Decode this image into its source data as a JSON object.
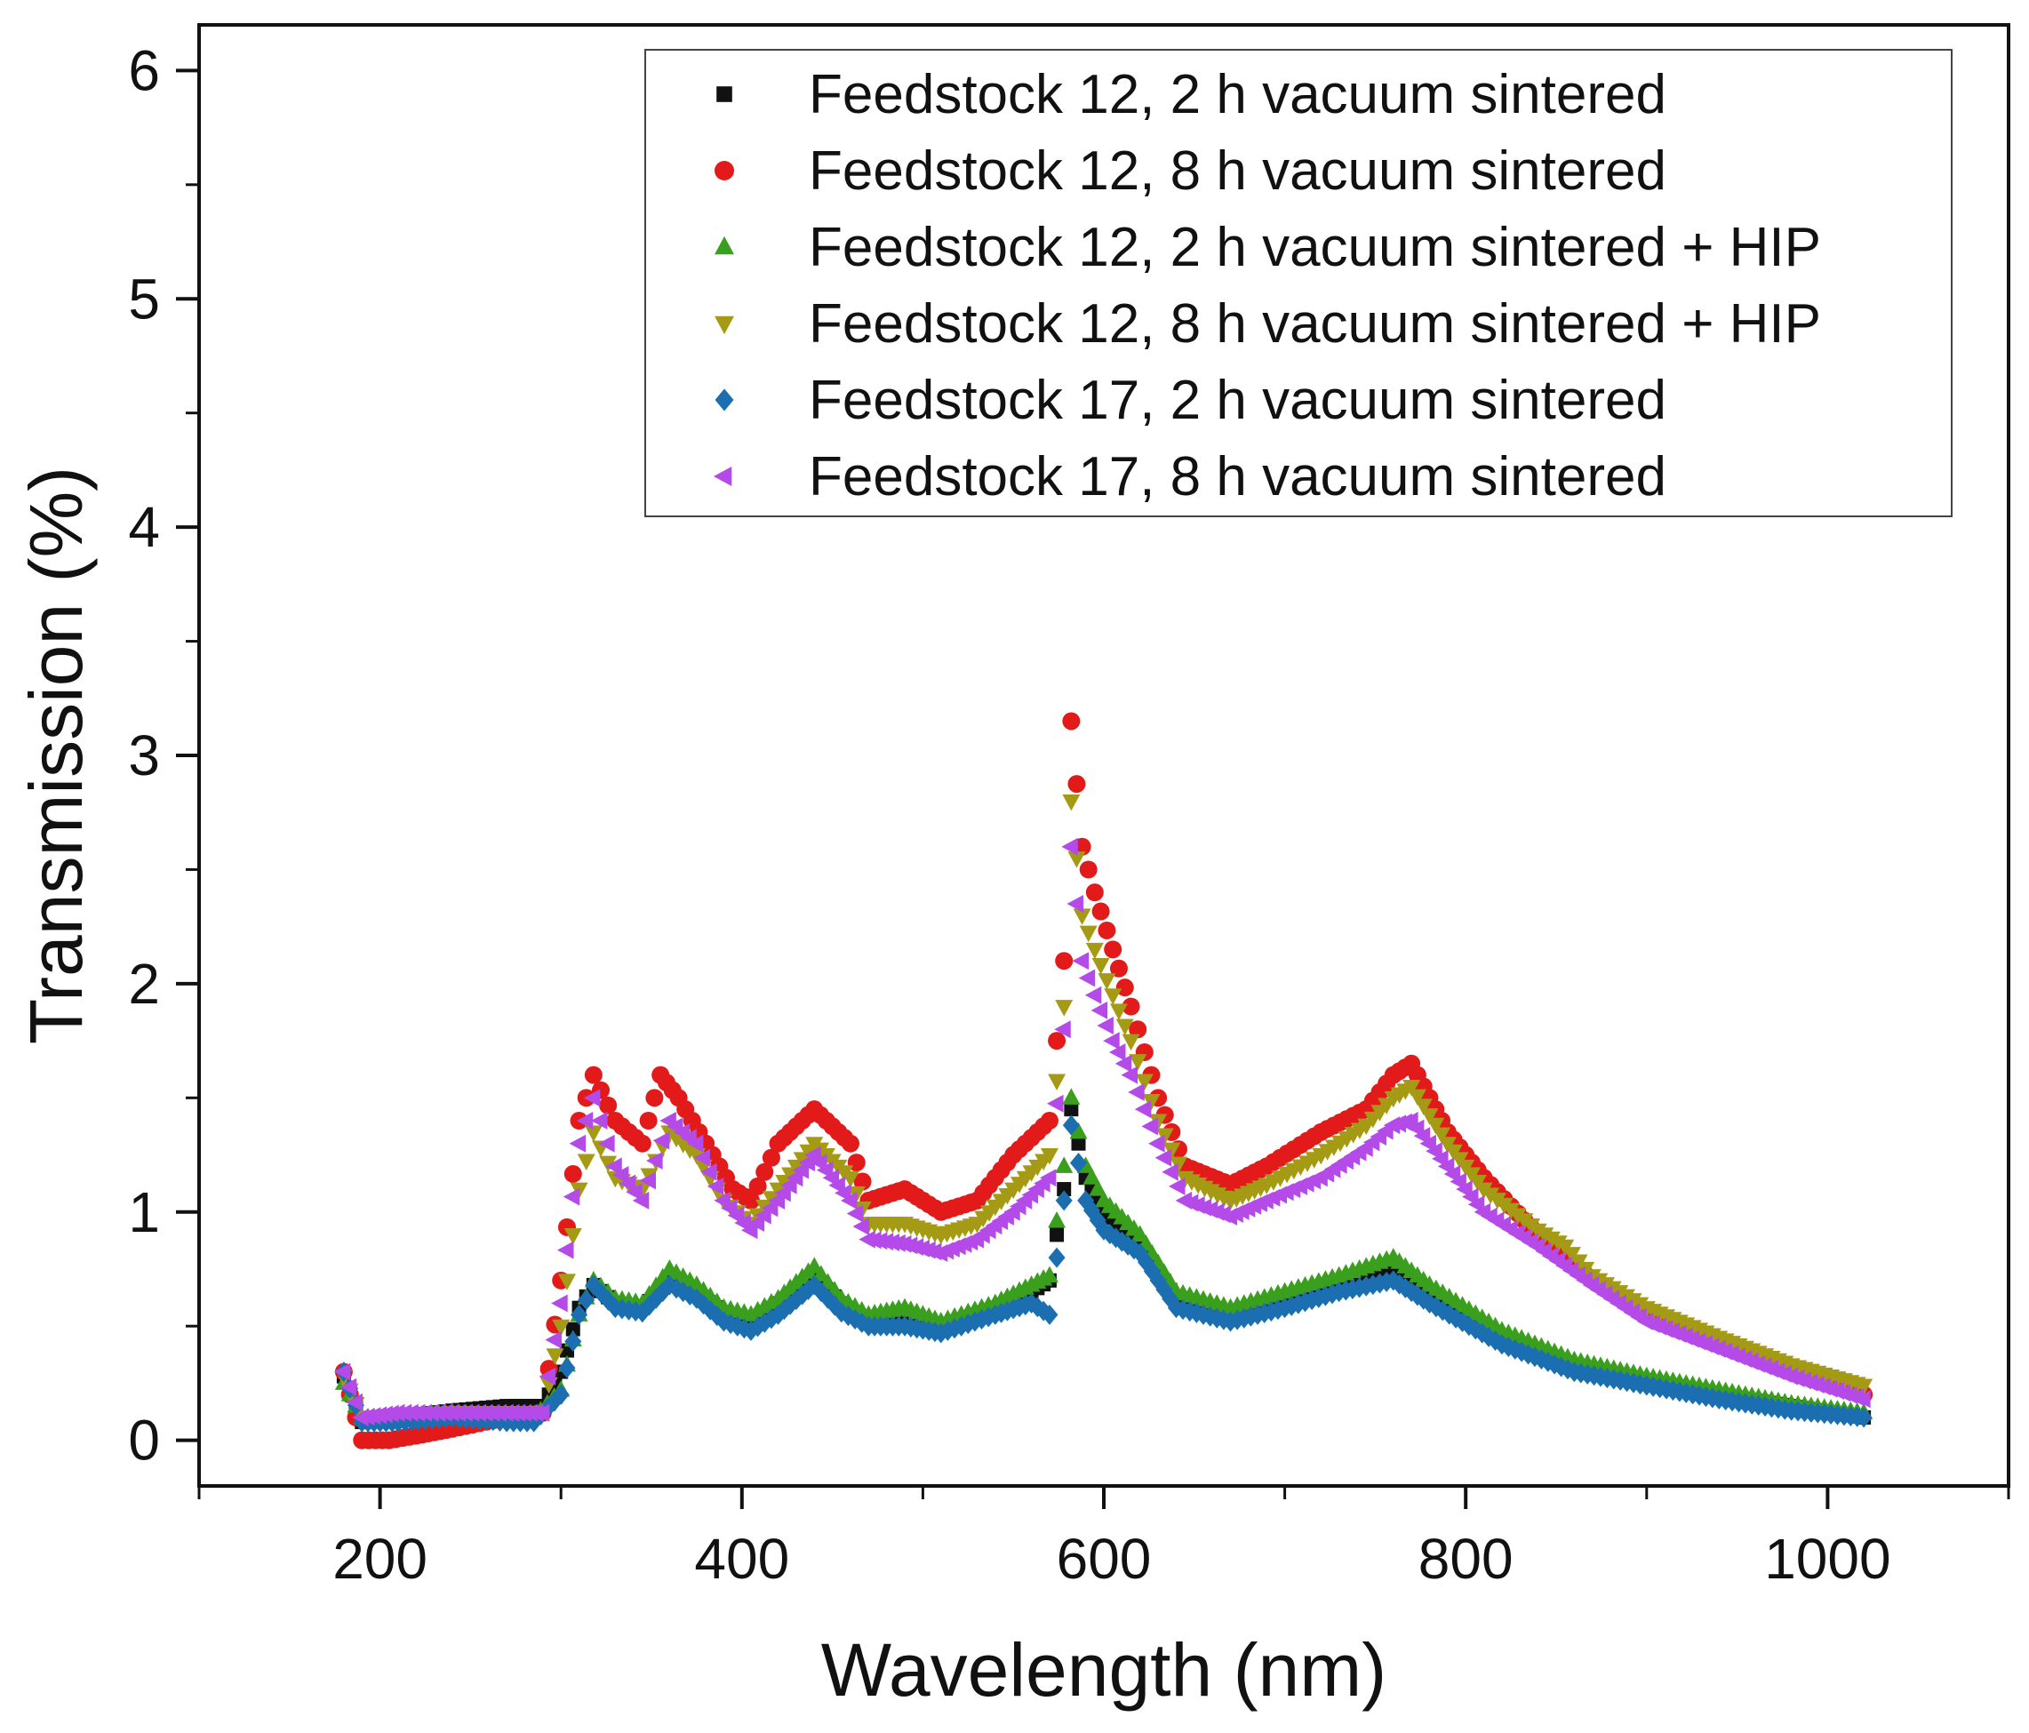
{
  "chart_data": {
    "type": "scatter",
    "xlabel": "Wavelength (nm)",
    "ylabel": "Transmission (%)",
    "xlim": [
      100,
      1100
    ],
    "ylim": [
      -0.2,
      6.2
    ],
    "x_ticks": [
      200,
      400,
      600,
      800,
      1000
    ],
    "x_tick_labels": [
      "200",
      "400",
      "600",
      "800",
      "1000"
    ],
    "y_ticks": [
      0,
      1,
      2,
      3,
      4,
      5,
      6
    ],
    "y_tick_labels": [
      "0",
      "1",
      "2",
      "3",
      "4",
      "5",
      "6"
    ],
    "legend_position": "top-right",
    "grid": false,
    "series": [
      {
        "name": "Feedstock 12, 2 h vacuum sintered",
        "color": "#111111",
        "marker": "square",
        "points": [
          [
            180,
            0.28
          ],
          [
            190,
            0.08
          ],
          [
            210,
            0.1
          ],
          [
            240,
            0.13
          ],
          [
            270,
            0.15
          ],
          [
            290,
            0.15
          ],
          [
            300,
            0.3
          ],
          [
            310,
            0.58
          ],
          [
            318,
            0.68
          ],
          [
            330,
            0.6
          ],
          [
            345,
            0.58
          ],
          [
            360,
            0.7
          ],
          [
            375,
            0.65
          ],
          [
            390,
            0.56
          ],
          [
            405,
            0.52
          ],
          [
            420,
            0.6
          ],
          [
            440,
            0.72
          ],
          [
            455,
            0.6
          ],
          [
            470,
            0.52
          ],
          [
            490,
            0.55
          ],
          [
            510,
            0.5
          ],
          [
            540,
            0.58
          ],
          [
            560,
            0.65
          ],
          [
            570,
            0.7
          ],
          [
            578,
            1.1
          ],
          [
            582,
            1.45
          ],
          [
            590,
            1.15
          ],
          [
            600,
            1.0
          ],
          [
            620,
            0.85
          ],
          [
            640,
            0.62
          ],
          [
            670,
            0.55
          ],
          [
            700,
            0.62
          ],
          [
            730,
            0.68
          ],
          [
            760,
            0.75
          ],
          [
            780,
            0.65
          ],
          [
            820,
            0.45
          ],
          [
            860,
            0.32
          ],
          [
            900,
            0.26
          ],
          [
            940,
            0.2
          ],
          [
            980,
            0.15
          ],
          [
            1020,
            0.1
          ]
        ]
      },
      {
        "name": "Feedstock 12, 8 h vacuum sintered",
        "color": "#e21a1a",
        "marker": "circle",
        "points": [
          [
            180,
            0.3
          ],
          [
            190,
            0.0
          ],
          [
            205,
            0.0
          ],
          [
            220,
            0.02
          ],
          [
            240,
            0.05
          ],
          [
            270,
            0.1
          ],
          [
            290,
            0.12
          ],
          [
            300,
            0.7
          ],
          [
            310,
            1.4
          ],
          [
            318,
            1.6
          ],
          [
            330,
            1.4
          ],
          [
            345,
            1.3
          ],
          [
            355,
            1.6
          ],
          [
            365,
            1.5
          ],
          [
            380,
            1.3
          ],
          [
            395,
            1.1
          ],
          [
            405,
            1.05
          ],
          [
            420,
            1.3
          ],
          [
            440,
            1.45
          ],
          [
            460,
            1.3
          ],
          [
            470,
            1.05
          ],
          [
            490,
            1.1
          ],
          [
            510,
            1.0
          ],
          [
            530,
            1.05
          ],
          [
            550,
            1.25
          ],
          [
            570,
            1.4
          ],
          [
            578,
            2.1
          ],
          [
            582,
            3.15
          ],
          [
            588,
            2.6
          ],
          [
            595,
            2.4
          ],
          [
            605,
            2.15
          ],
          [
            615,
            1.9
          ],
          [
            630,
            1.5
          ],
          [
            645,
            1.2
          ],
          [
            670,
            1.12
          ],
          [
            690,
            1.2
          ],
          [
            720,
            1.35
          ],
          [
            745,
            1.45
          ],
          [
            760,
            1.6
          ],
          [
            770,
            1.65
          ],
          [
            790,
            1.35
          ],
          [
            810,
            1.15
          ],
          [
            840,
            0.9
          ],
          [
            870,
            0.7
          ],
          [
            900,
            0.55
          ],
          [
            940,
            0.42
          ],
          [
            980,
            0.3
          ],
          [
            1020,
            0.2
          ]
        ]
      },
      {
        "name": "Feedstock 12, 2 h vacuum sintered + HIP",
        "color": "#3a9f1c",
        "marker": "triangle-up",
        "points": [
          [
            180,
            0.25
          ],
          [
            190,
            0.1
          ],
          [
            210,
            0.1
          ],
          [
            240,
            0.12
          ],
          [
            270,
            0.1
          ],
          [
            285,
            0.1
          ],
          [
            300,
            0.22
          ],
          [
            310,
            0.55
          ],
          [
            318,
            0.7
          ],
          [
            330,
            0.62
          ],
          [
            345,
            0.6
          ],
          [
            360,
            0.75
          ],
          [
            375,
            0.68
          ],
          [
            390,
            0.58
          ],
          [
            405,
            0.55
          ],
          [
            420,
            0.62
          ],
          [
            440,
            0.76
          ],
          [
            455,
            0.62
          ],
          [
            470,
            0.55
          ],
          [
            490,
            0.58
          ],
          [
            510,
            0.52
          ],
          [
            540,
            0.6
          ],
          [
            560,
            0.68
          ],
          [
            570,
            0.72
          ],
          [
            578,
            1.2
          ],
          [
            582,
            1.5
          ],
          [
            590,
            1.2
          ],
          [
            600,
            1.05
          ],
          [
            620,
            0.9
          ],
          [
            640,
            0.65
          ],
          [
            670,
            0.58
          ],
          [
            700,
            0.65
          ],
          [
            730,
            0.72
          ],
          [
            760,
            0.8
          ],
          [
            780,
            0.68
          ],
          [
            820,
            0.48
          ],
          [
            860,
            0.35
          ],
          [
            900,
            0.28
          ],
          [
            940,
            0.22
          ],
          [
            980,
            0.16
          ],
          [
            1020,
            0.12
          ]
        ]
      },
      {
        "name": "Feedstock 12, 8 h vacuum sintered + HIP",
        "color": "#a49a14",
        "marker": "triangle-down",
        "points": [
          [
            180,
            0.28
          ],
          [
            190,
            0.1
          ],
          [
            210,
            0.1
          ],
          [
            240,
            0.12
          ],
          [
            270,
            0.12
          ],
          [
            290,
            0.12
          ],
          [
            300,
            0.5
          ],
          [
            310,
            1.1
          ],
          [
            318,
            1.35
          ],
          [
            330,
            1.15
          ],
          [
            345,
            1.1
          ],
          [
            360,
            1.35
          ],
          [
            375,
            1.25
          ],
          [
            390,
            1.05
          ],
          [
            405,
            0.95
          ],
          [
            420,
            1.1
          ],
          [
            440,
            1.3
          ],
          [
            460,
            1.15
          ],
          [
            470,
            0.95
          ],
          [
            490,
            0.95
          ],
          [
            510,
            0.9
          ],
          [
            530,
            0.95
          ],
          [
            550,
            1.1
          ],
          [
            570,
            1.25
          ],
          [
            578,
            1.9
          ],
          [
            582,
            2.8
          ],
          [
            588,
            2.3
          ],
          [
            595,
            2.15
          ],
          [
            605,
            1.95
          ],
          [
            615,
            1.75
          ],
          [
            630,
            1.4
          ],
          [
            645,
            1.15
          ],
          [
            670,
            1.05
          ],
          [
            690,
            1.12
          ],
          [
            720,
            1.25
          ],
          [
            745,
            1.38
          ],
          [
            760,
            1.5
          ],
          [
            770,
            1.55
          ],
          [
            790,
            1.3
          ],
          [
            810,
            1.1
          ],
          [
            840,
            0.92
          ],
          [
            855,
            0.85
          ],
          [
            870,
            0.72
          ],
          [
            900,
            0.58
          ],
          [
            940,
            0.45
          ],
          [
            980,
            0.33
          ],
          [
            1020,
            0.24
          ]
        ]
      },
      {
        "name": "Feedstock 17, 2 h vacuum sintered",
        "color": "#1b6fb0",
        "marker": "diamond",
        "points": [
          [
            180,
            0.3
          ],
          [
            190,
            0.08
          ],
          [
            210,
            0.08
          ],
          [
            240,
            0.1
          ],
          [
            270,
            0.08
          ],
          [
            285,
            0.08
          ],
          [
            300,
            0.2
          ],
          [
            310,
            0.55
          ],
          [
            318,
            0.68
          ],
          [
            330,
            0.58
          ],
          [
            345,
            0.56
          ],
          [
            360,
            0.68
          ],
          [
            375,
            0.62
          ],
          [
            390,
            0.52
          ],
          [
            405,
            0.48
          ],
          [
            420,
            0.55
          ],
          [
            440,
            0.68
          ],
          [
            455,
            0.56
          ],
          [
            470,
            0.5
          ],
          [
            490,
            0.5
          ],
          [
            510,
            0.47
          ],
          [
            540,
            0.55
          ],
          [
            560,
            0.6
          ],
          [
            570,
            0.55
          ],
          [
            578,
            1.05
          ],
          [
            582,
            1.38
          ],
          [
            590,
            1.05
          ],
          [
            600,
            0.92
          ],
          [
            620,
            0.82
          ],
          [
            640,
            0.58
          ],
          [
            670,
            0.52
          ],
          [
            700,
            0.58
          ],
          [
            730,
            0.65
          ],
          [
            760,
            0.7
          ],
          [
            780,
            0.6
          ],
          [
            820,
            0.42
          ],
          [
            860,
            0.3
          ],
          [
            900,
            0.24
          ],
          [
            940,
            0.18
          ],
          [
            980,
            0.13
          ],
          [
            1020,
            0.1
          ]
        ]
      },
      {
        "name": "Feedstock 17, 8 h vacuum sintered",
        "color": "#b44ae8",
        "marker": "triangle-left",
        "points": [
          [
            180,
            0.3
          ],
          [
            190,
            0.1
          ],
          [
            210,
            0.12
          ],
          [
            240,
            0.12
          ],
          [
            270,
            0.12
          ],
          [
            290,
            0.12
          ],
          [
            300,
            0.6
          ],
          [
            310,
            1.3
          ],
          [
            318,
            1.5
          ],
          [
            330,
            1.2
          ],
          [
            345,
            1.05
          ],
          [
            360,
            1.4
          ],
          [
            375,
            1.3
          ],
          [
            390,
            1.05
          ],
          [
            405,
            0.92
          ],
          [
            420,
            1.05
          ],
          [
            440,
            1.25
          ],
          [
            460,
            1.05
          ],
          [
            470,
            0.88
          ],
          [
            490,
            0.86
          ],
          [
            510,
            0.82
          ],
          [
            530,
            0.88
          ],
          [
            550,
            1.0
          ],
          [
            570,
            1.15
          ],
          [
            578,
            1.8
          ],
          [
            582,
            2.6
          ],
          [
            588,
            2.1
          ],
          [
            595,
            1.95
          ],
          [
            605,
            1.75
          ],
          [
            615,
            1.6
          ],
          [
            630,
            1.3
          ],
          [
            645,
            1.05
          ],
          [
            670,
            0.98
          ],
          [
            690,
            1.05
          ],
          [
            720,
            1.15
          ],
          [
            745,
            1.28
          ],
          [
            760,
            1.38
          ],
          [
            770,
            1.4
          ],
          [
            790,
            1.2
          ],
          [
            810,
            1.0
          ],
          [
            840,
            0.85
          ],
          [
            870,
            0.68
          ],
          [
            900,
            0.52
          ],
          [
            940,
            0.4
          ],
          [
            980,
            0.28
          ],
          [
            1020,
            0.18
          ]
        ]
      }
    ]
  }
}
